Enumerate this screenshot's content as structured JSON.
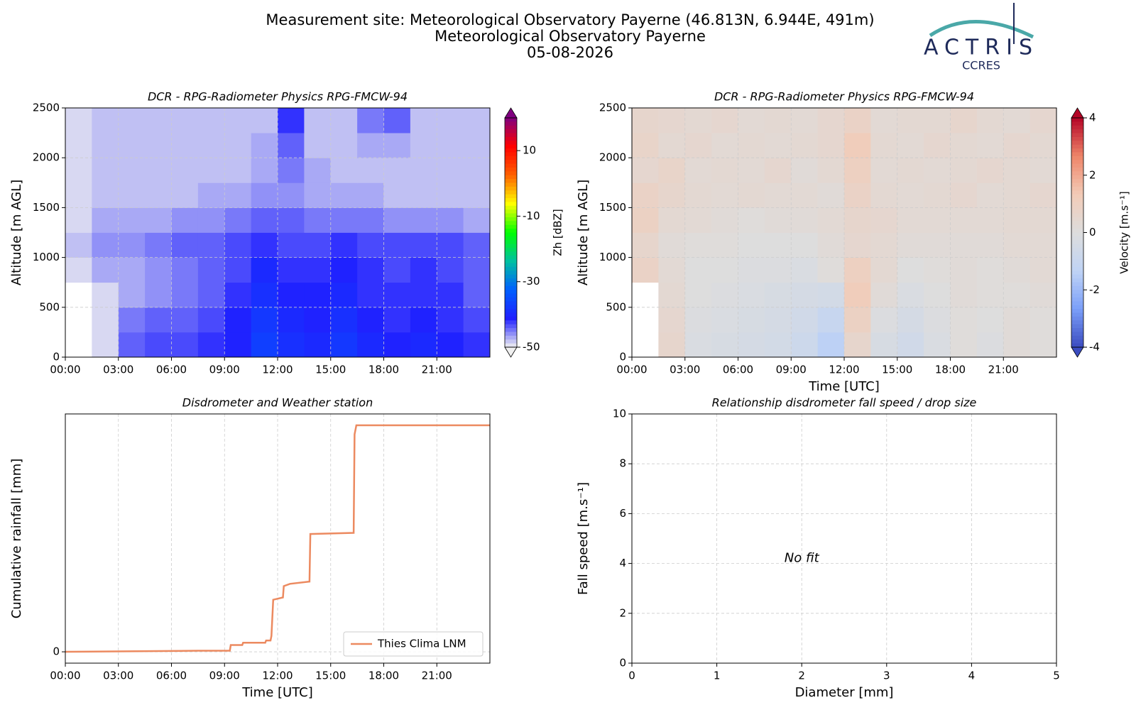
{
  "header": {
    "lines": [
      "Measurement site: Meteorological Observatory Payerne (46.813N, 6.944E, 491m)",
      "Meteorological Observatory Payerne",
      "05-08-2026"
    ],
    "logo_title": "ACTRIS",
    "logo_subtitle": "CCRES"
  },
  "chart_data": [
    {
      "type": "heatmap",
      "title": "DCR - RPG-Radiometer Physics RPG-FMCW-94",
      "ylabel": "Altitude [m AGL]",
      "xlim": [
        0,
        24
      ],
      "xticks": [
        {
          "value": 0,
          "label": "00:00"
        },
        {
          "value": 3,
          "label": "03:00"
        },
        {
          "value": 6,
          "label": "06:00"
        },
        {
          "value": 9,
          "label": "09:00"
        },
        {
          "value": 12,
          "label": "12:00"
        },
        {
          "value": 15,
          "label": "15:00"
        },
        {
          "value": 18,
          "label": "18:00"
        },
        {
          "value": 21,
          "label": "21:00"
        }
      ],
      "ylim": [
        0,
        2500
      ],
      "yticks": [
        0,
        500,
        1000,
        1500,
        2000,
        2500
      ],
      "grid": true,
      "x_bins": [
        0,
        1.5,
        3,
        4.5,
        6,
        7.5,
        9,
        10.5,
        12,
        13.5,
        15,
        16.5,
        18,
        19.5,
        21,
        22.5,
        24
      ],
      "y_bins": [
        0,
        250,
        500,
        750,
        1000,
        1250,
        1500,
        1750,
        2000,
        2250,
        2500
      ],
      "z": [
        [
          null,
          -49,
          -44,
          -43,
          -43,
          -42,
          -41,
          -37,
          -39,
          -40,
          -38,
          -40,
          -41,
          -40,
          -41,
          -42
        ],
        [
          null,
          -49,
          -45,
          -44,
          -44,
          -43,
          -41,
          -38,
          -40,
          -41,
          -39,
          -41,
          -42,
          -41,
          -42,
          -43
        ],
        [
          null,
          -49,
          -47,
          -46,
          -45,
          -44,
          -42,
          -39,
          -41,
          -41,
          -40,
          -42,
          -42,
          -42,
          -42,
          -44
        ],
        [
          -49,
          -47,
          -47,
          -46,
          -45,
          -44,
          -43,
          -40,
          -42,
          -42,
          -41,
          -42,
          -43,
          -42,
          -43,
          -44
        ],
        [
          -48,
          -46,
          -46,
          -45,
          -44,
          -44,
          -43,
          -42,
          -43,
          -43,
          -42,
          -43,
          -43,
          -43,
          -43,
          -44
        ],
        [
          -49,
          -47,
          -47,
          -47,
          -46,
          -46,
          -45,
          -44,
          -44,
          -45,
          -45,
          -45,
          -46,
          -46,
          -46,
          -47
        ],
        [
          -49,
          -48,
          -48,
          -48,
          -48,
          -47,
          -47,
          -46,
          -46,
          -47,
          -47,
          -47,
          -48,
          -48,
          -48,
          -48
        ],
        [
          -49,
          -48,
          -48,
          -48,
          -48,
          -48,
          -48,
          -47,
          -45,
          -47,
          -48,
          -48,
          -48,
          -48,
          -48,
          -48
        ],
        [
          -49,
          -48,
          -48,
          -48,
          -48,
          -48,
          -48,
          -47,
          -44,
          -48,
          -48,
          -47,
          -47,
          -48,
          -48,
          -48
        ],
        [
          -49,
          -48,
          -48,
          -48,
          -48,
          -48,
          -48,
          -48,
          -42,
          -48,
          -48,
          -45,
          -44,
          -48,
          -48,
          -48
        ]
      ],
      "clim": [
        -50,
        20
      ],
      "cticks": [
        -50,
        -30,
        -10,
        10
      ],
      "clabel": "Zh [dBZ]",
      "colormap": [
        "#f0f0f0",
        "#2020ff",
        "#0060ff",
        "#00c0a0",
        "#00ff00",
        "#ffff00",
        "#ff6000",
        "#ff0000",
        "#800080"
      ]
    },
    {
      "type": "heatmap",
      "title": "DCR - RPG-Radiometer Physics RPG-FMCW-94",
      "ylabel": "Altitude [m AGL]",
      "xlabel": "Time [UTC]",
      "xlim": [
        0,
        24
      ],
      "xticks": [
        {
          "value": 0,
          "label": "00:00"
        },
        {
          "value": 3,
          "label": "03:00"
        },
        {
          "value": 6,
          "label": "06:00"
        },
        {
          "value": 9,
          "label": "09:00"
        },
        {
          "value": 12,
          "label": "12:00"
        },
        {
          "value": 15,
          "label": "15:00"
        },
        {
          "value": 18,
          "label": "18:00"
        },
        {
          "value": 21,
          "label": "21:00"
        }
      ],
      "ylim": [
        0,
        2500
      ],
      "yticks": [
        0,
        500,
        1000,
        1500,
        2000,
        2500
      ],
      "grid": true,
      "x_bins": [
        0,
        1.5,
        3,
        4.5,
        6,
        7.5,
        9,
        10.5,
        12,
        13.5,
        15,
        16.5,
        18,
        19.5,
        21,
        22.5,
        24
      ],
      "y_bins": [
        0,
        250,
        500,
        750,
        1000,
        1250,
        1500,
        1750,
        2000,
        2250,
        2500
      ],
      "z": [
        [
          null,
          0.6,
          -0.2,
          -0.3,
          -0.4,
          -0.5,
          -0.8,
          -1.4,
          0.6,
          -0.3,
          -0.6,
          -0.2,
          0.1,
          -0.1,
          0.2,
          0.1
        ],
        [
          null,
          0.5,
          -0.1,
          -0.2,
          -0.3,
          -0.4,
          -0.6,
          -1.0,
          0.9,
          -0.1,
          -0.4,
          -0.1,
          0.1,
          0,
          0.2,
          0.1
        ],
        [
          null,
          0.4,
          0,
          -0.1,
          -0.2,
          -0.3,
          -0.4,
          -0.5,
          1.2,
          0.2,
          -0.2,
          0,
          0.2,
          0.1,
          0.1,
          0.2
        ],
        [
          0.8,
          0.3,
          0,
          0,
          -0.1,
          -0.1,
          -0.2,
          0.1,
          1.0,
          0.4,
          0,
          0.1,
          0.2,
          0.1,
          0.2,
          0.3
        ],
        [
          0.6,
          0.2,
          0.1,
          0.1,
          0,
          0,
          0,
          0.2,
          0.5,
          0.4,
          0.2,
          0.2,
          0.2,
          0.2,
          0.3,
          0.3
        ],
        [
          0.9,
          0.4,
          0.3,
          0.2,
          0.1,
          0.2,
          0.2,
          0.3,
          0.6,
          0.5,
          0.3,
          0.3,
          0.3,
          0.3,
          0.4,
          0.4
        ],
        [
          0.8,
          0.6,
          0.4,
          0.3,
          0.4,
          0.3,
          0.3,
          0.2,
          0.8,
          0.4,
          0.3,
          0.4,
          0.5,
          0.3,
          0.4,
          0.5
        ],
        [
          0.5,
          0.7,
          0.3,
          0.4,
          0.3,
          0.5,
          0.2,
          0.4,
          1.0,
          0.3,
          0.4,
          0.3,
          0.4,
          0.5,
          0.4,
          0.3
        ],
        [
          0.7,
          0.4,
          0.5,
          0.3,
          0.4,
          0.3,
          0.4,
          0.5,
          1.2,
          0.4,
          0.3,
          0.5,
          0.4,
          0.3,
          0.5,
          0.4
        ],
        [
          0.6,
          0.5,
          0.4,
          0.5,
          0.3,
          0.4,
          0.3,
          0.5,
          0.8,
          0.3,
          0.4,
          0.4,
          0.6,
          0.4,
          0.3,
          0.5
        ]
      ],
      "clim": [
        -4,
        4
      ],
      "cticks": [
        -4,
        -2,
        0,
        2,
        4
      ],
      "clabel": "Velocity [m.s⁻¹]",
      "colormap": [
        "#3b4cc0",
        "#7b9ff9",
        "#c0d4f5",
        "#dddddd",
        "#f2cbb7",
        "#ee8468",
        "#b40426"
      ]
    },
    {
      "type": "line",
      "title": "Disdrometer and Weather station",
      "ylabel": "Cumulative rainfall [mm]",
      "xlabel": "Time [UTC]",
      "xlim": [
        0,
        24
      ],
      "xticks": [
        {
          "value": 0,
          "label": "00:00"
        },
        {
          "value": 3,
          "label": "03:00"
        },
        {
          "value": 6,
          "label": "06:00"
        },
        {
          "value": 9,
          "label": "09:00"
        },
        {
          "value": 12,
          "label": "12:00"
        },
        {
          "value": 15,
          "label": "15:00"
        },
        {
          "value": 18,
          "label": "18:00"
        },
        {
          "value": 21,
          "label": "21:00"
        }
      ],
      "ylim": [
        -0.5,
        10.5
      ],
      "yticks": [
        0
      ],
      "grid": true,
      "legend": "lower right",
      "x": [
        0,
        7.5,
        9.3,
        9.35,
        10.0,
        10.05,
        11.3,
        11.35,
        11.6,
        11.65,
        11.75,
        12.3,
        12.35,
        12.7,
        13.8,
        13.85,
        16.3,
        16.35,
        16.45,
        24
      ],
      "series": [
        {
          "name": "Thies Clima LNM",
          "color": "#ec8a60",
          "values": [
            0,
            0.05,
            0.05,
            0.3,
            0.3,
            0.4,
            0.4,
            0.5,
            0.5,
            0.7,
            2.3,
            2.4,
            2.9,
            3.0,
            3.1,
            5.2,
            5.25,
            9.6,
            10.0,
            10.0
          ]
        }
      ]
    },
    {
      "type": "scatter",
      "title": "Relationship disdrometer fall speed / drop size",
      "xlabel": "Diameter [mm]",
      "ylabel": "Fall speed [m.s⁻¹]",
      "xlim": [
        0,
        5
      ],
      "xticks": [
        0,
        1,
        2,
        3,
        4,
        5
      ],
      "ylim": [
        0,
        10
      ],
      "yticks": [
        0,
        2,
        4,
        6,
        8,
        10
      ],
      "grid": true,
      "annotation": "No fit"
    }
  ]
}
